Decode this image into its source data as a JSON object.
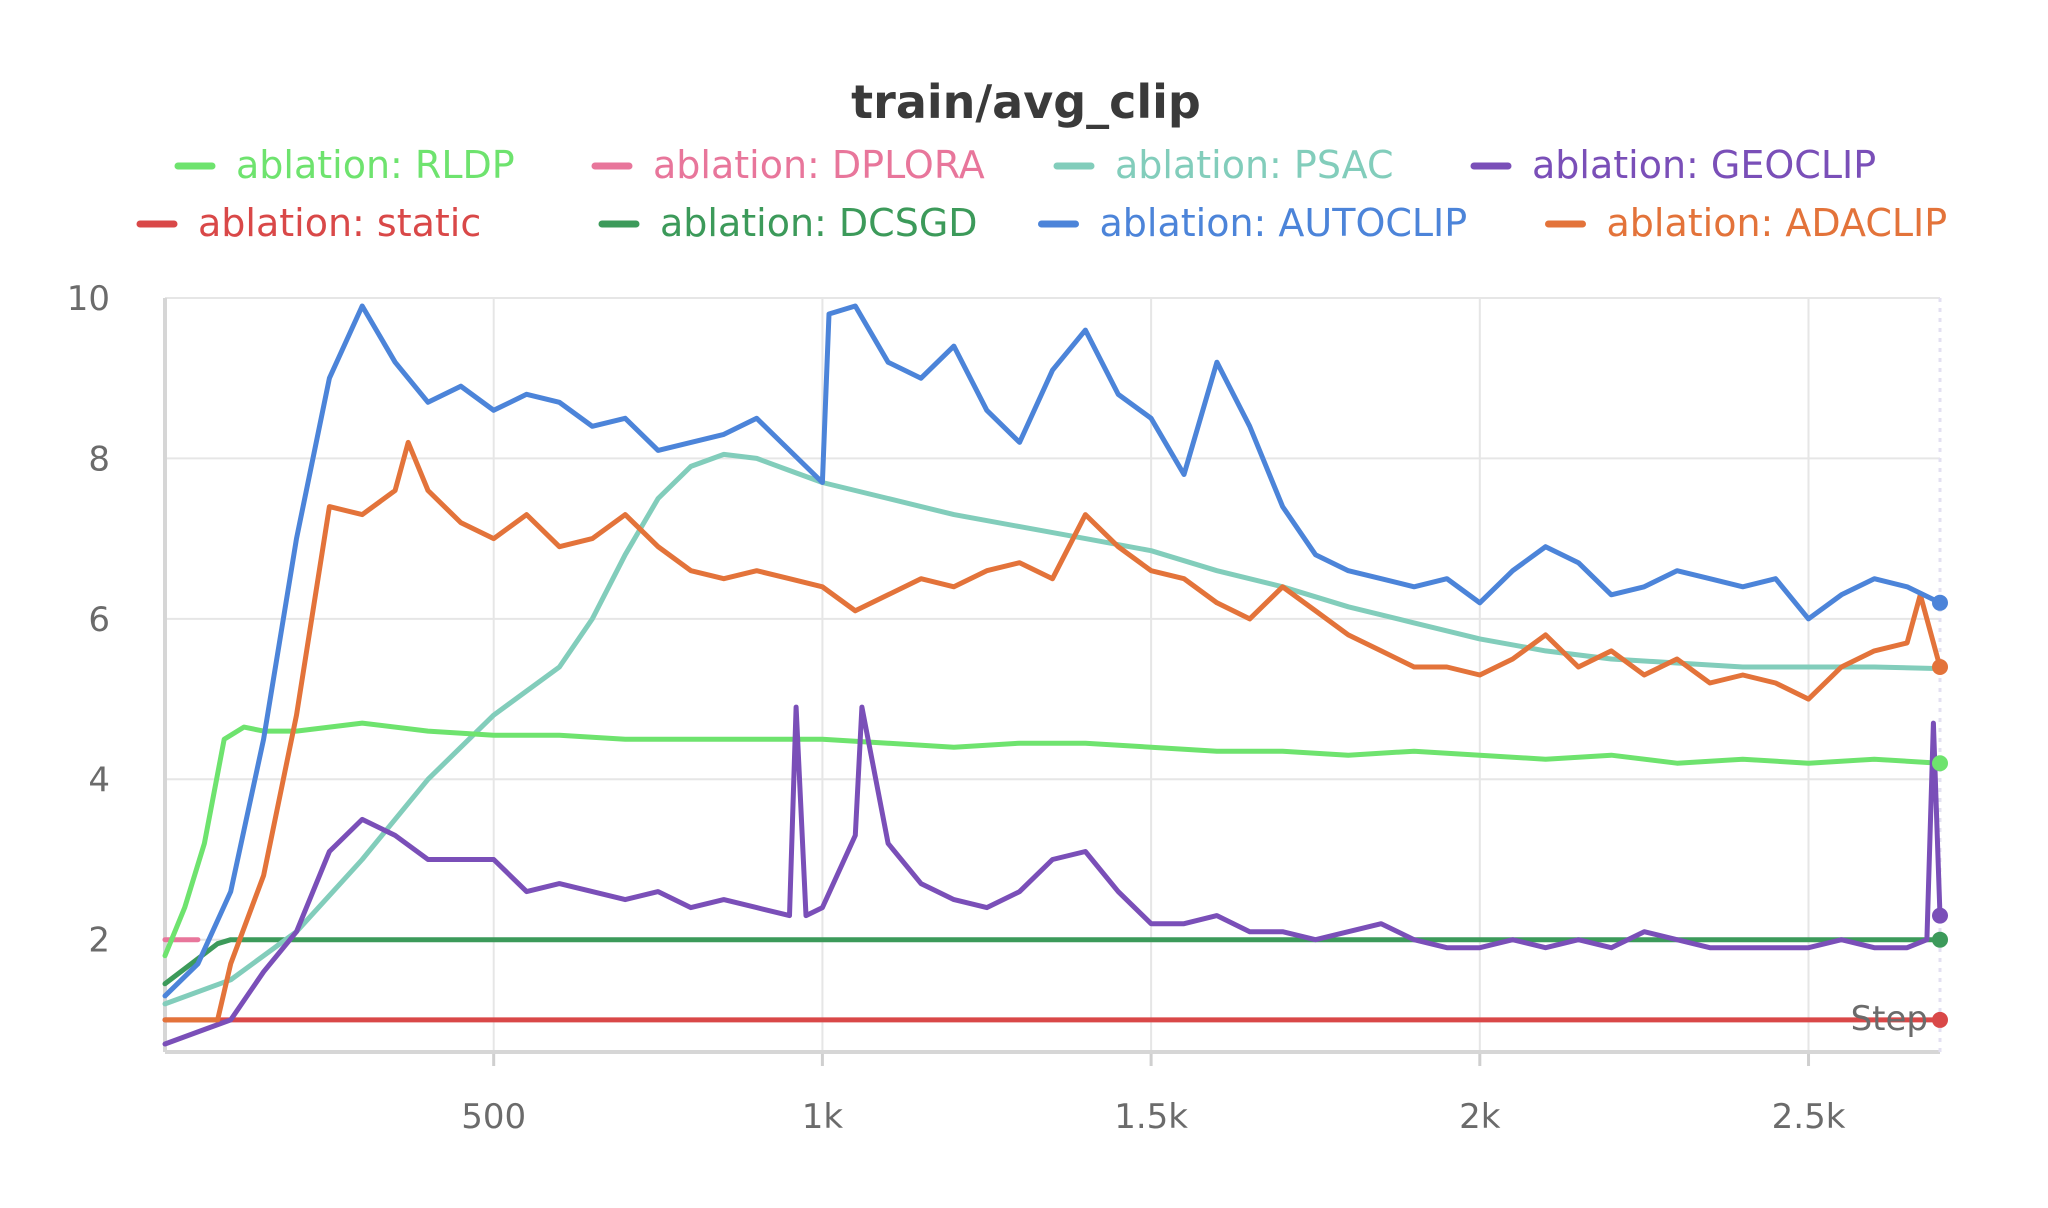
{
  "chart_data": {
    "type": "line",
    "title": "train/avg_clip",
    "xlabel": "Step",
    "ylabel": "",
    "xlim": [
      0,
      2700
    ],
    "ylim": [
      0.6,
      10
    ],
    "x_ticks": [
      500,
      1000,
      1500,
      2000,
      2500
    ],
    "x_tick_labels": [
      "500",
      "1k",
      "1.5k",
      "2k",
      "2.5k"
    ],
    "y_ticks": [
      2,
      4,
      6,
      8,
      10
    ],
    "y_tick_labels": [
      "2",
      "4",
      "6",
      "8",
      "10"
    ],
    "grid": true,
    "legend_position": "top",
    "legend_rows": [
      [
        "rldp",
        "dplora",
        "psac",
        "geoclip"
      ],
      [
        "static",
        "dcsgd",
        "autoclip",
        "adaclip"
      ]
    ],
    "series": [
      {
        "key": "rldp",
        "name": "ablation: RLDP",
        "color": "#6ee36e",
        "end_marker": true,
        "x": [
          0,
          30,
          60,
          90,
          120,
          150,
          200,
          300,
          400,
          500,
          600,
          700,
          800,
          900,
          1000,
          1100,
          1200,
          1300,
          1400,
          1500,
          1600,
          1700,
          1800,
          1900,
          2000,
          2100,
          2200,
          2300,
          2400,
          2500,
          2600,
          2700
        ],
        "y": [
          1.8,
          2.4,
          3.2,
          4.5,
          4.65,
          4.6,
          4.6,
          4.7,
          4.6,
          4.55,
          4.55,
          4.5,
          4.5,
          4.5,
          4.5,
          4.45,
          4.4,
          4.45,
          4.45,
          4.4,
          4.35,
          4.35,
          4.3,
          4.35,
          4.3,
          4.25,
          4.3,
          4.2,
          4.25,
          4.2,
          4.25,
          4.2
        ]
      },
      {
        "key": "dplora",
        "name": "ablation: DPLORA",
        "color": "#e8769b",
        "end_marker": false,
        "x": [
          0,
          50
        ],
        "y": [
          2.0,
          2.0
        ]
      },
      {
        "key": "psac",
        "name": "ablation: PSAC",
        "color": "#82cdbb",
        "end_marker": false,
        "x": [
          0,
          100,
          200,
          300,
          400,
          500,
          600,
          650,
          700,
          750,
          800,
          850,
          900,
          950,
          1000,
          1100,
          1200,
          1300,
          1400,
          1500,
          1600,
          1700,
          1800,
          1900,
          2000,
          2100,
          2200,
          2300,
          2400,
          2500,
          2600,
          2700
        ],
        "y": [
          1.2,
          1.5,
          2.1,
          3.0,
          4.0,
          4.8,
          5.4,
          6.0,
          6.8,
          7.5,
          7.9,
          8.05,
          8.0,
          7.85,
          7.7,
          7.5,
          7.3,
          7.15,
          7.0,
          6.85,
          6.6,
          6.4,
          6.15,
          5.95,
          5.75,
          5.6,
          5.5,
          5.45,
          5.4,
          5.4,
          5.4,
          5.38
        ]
      },
      {
        "key": "geoclip",
        "name": "ablation: GEOCLIP",
        "color": "#7a4fb8",
        "end_marker": true,
        "x": [
          0,
          50,
          100,
          150,
          200,
          250,
          300,
          350,
          400,
          450,
          500,
          550,
          600,
          650,
          700,
          750,
          800,
          850,
          900,
          950,
          960,
          975,
          1000,
          1050,
          1060,
          1100,
          1150,
          1200,
          1250,
          1300,
          1350,
          1400,
          1450,
          1500,
          1550,
          1600,
          1650,
          1700,
          1750,
          1800,
          1850,
          1900,
          1950,
          2000,
          2050,
          2100,
          2150,
          2200,
          2250,
          2300,
          2350,
          2400,
          2450,
          2500,
          2550,
          2600,
          2650,
          2680,
          2690,
          2700
        ],
        "y": [
          0.7,
          0.85,
          1.0,
          1.6,
          2.1,
          3.1,
          3.5,
          3.3,
          3.0,
          3.0,
          3.0,
          2.6,
          2.7,
          2.6,
          2.5,
          2.6,
          2.4,
          2.5,
          2.4,
          2.3,
          4.9,
          2.3,
          2.4,
          3.3,
          4.9,
          3.2,
          2.7,
          2.5,
          2.4,
          2.6,
          3.0,
          3.1,
          2.6,
          2.2,
          2.2,
          2.3,
          2.1,
          2.1,
          2.0,
          2.1,
          2.2,
          2.0,
          1.9,
          1.9,
          2.0,
          1.9,
          2.0,
          1.9,
          2.1,
          2.0,
          1.9,
          1.9,
          1.9,
          1.9,
          2.0,
          1.9,
          1.9,
          2.0,
          4.7,
          2.3
        ]
      },
      {
        "key": "static",
        "name": "ablation: static",
        "color": "#d94848",
        "end_marker": true,
        "x": [
          0,
          2700
        ],
        "y": [
          1.0,
          1.0
        ]
      },
      {
        "key": "dcsgd",
        "name": "ablation: DCSGD",
        "color": "#3c9a5a",
        "end_marker": true,
        "x": [
          0,
          40,
          80,
          100,
          2700
        ],
        "y": [
          1.45,
          1.7,
          1.95,
          2.0,
          2.0
        ]
      },
      {
        "key": "autoclip",
        "name": "ablation: AUTOCLIP",
        "color": "#4c84d9",
        "end_marker": true,
        "x": [
          0,
          50,
          100,
          150,
          200,
          250,
          300,
          350,
          400,
          450,
          500,
          550,
          600,
          650,
          700,
          750,
          800,
          850,
          900,
          950,
          1000,
          1010,
          1050,
          1100,
          1150,
          1200,
          1250,
          1300,
          1350,
          1400,
          1450,
          1500,
          1550,
          1600,
          1650,
          1700,
          1750,
          1800,
          1850,
          1900,
          1950,
          2000,
          2050,
          2100,
          2150,
          2200,
          2250,
          2300,
          2350,
          2400,
          2450,
          2500,
          2550,
          2600,
          2650,
          2700
        ],
        "y": [
          1.3,
          1.7,
          2.6,
          4.5,
          7.0,
          9.0,
          9.9,
          9.2,
          8.7,
          8.9,
          8.6,
          8.8,
          8.7,
          8.4,
          8.5,
          8.1,
          8.2,
          8.3,
          8.5,
          8.1,
          7.7,
          9.8,
          9.9,
          9.2,
          9.0,
          9.4,
          8.6,
          8.2,
          9.1,
          9.6,
          8.8,
          8.5,
          7.8,
          9.2,
          8.4,
          7.4,
          6.8,
          6.6,
          6.5,
          6.4,
          6.5,
          6.2,
          6.6,
          6.9,
          6.7,
          6.3,
          6.4,
          6.6,
          6.5,
          6.4,
          6.5,
          6.0,
          6.3,
          6.5,
          6.4,
          6.2
        ]
      },
      {
        "key": "adaclip",
        "name": "ablation: ADACLIP",
        "color": "#e3733a",
        "end_marker": true,
        "x": [
          0,
          60,
          80,
          100,
          150,
          200,
          250,
          300,
          350,
          370,
          400,
          450,
          500,
          550,
          600,
          650,
          700,
          750,
          800,
          850,
          900,
          950,
          1000,
          1050,
          1100,
          1150,
          1200,
          1250,
          1300,
          1350,
          1400,
          1450,
          1500,
          1550,
          1600,
          1650,
          1700,
          1750,
          1800,
          1850,
          1900,
          1950,
          2000,
          2050,
          2100,
          2150,
          2200,
          2250,
          2300,
          2350,
          2400,
          2450,
          2500,
          2550,
          2600,
          2650,
          2670,
          2700
        ],
        "y": [
          1.0,
          1.0,
          1.0,
          1.7,
          2.8,
          4.8,
          7.4,
          7.3,
          7.6,
          8.2,
          7.6,
          7.2,
          7.0,
          7.3,
          6.9,
          7.0,
          7.3,
          6.9,
          6.6,
          6.5,
          6.6,
          6.5,
          6.4,
          6.1,
          6.3,
          6.5,
          6.4,
          6.6,
          6.7,
          6.5,
          7.3,
          6.9,
          6.6,
          6.5,
          6.2,
          6.0,
          6.4,
          6.1,
          5.8,
          5.6,
          5.4,
          5.4,
          5.3,
          5.5,
          5.8,
          5.4,
          5.6,
          5.3,
          5.5,
          5.2,
          5.3,
          5.2,
          5.0,
          5.4,
          5.6,
          5.7,
          6.3,
          5.4
        ]
      }
    ]
  }
}
